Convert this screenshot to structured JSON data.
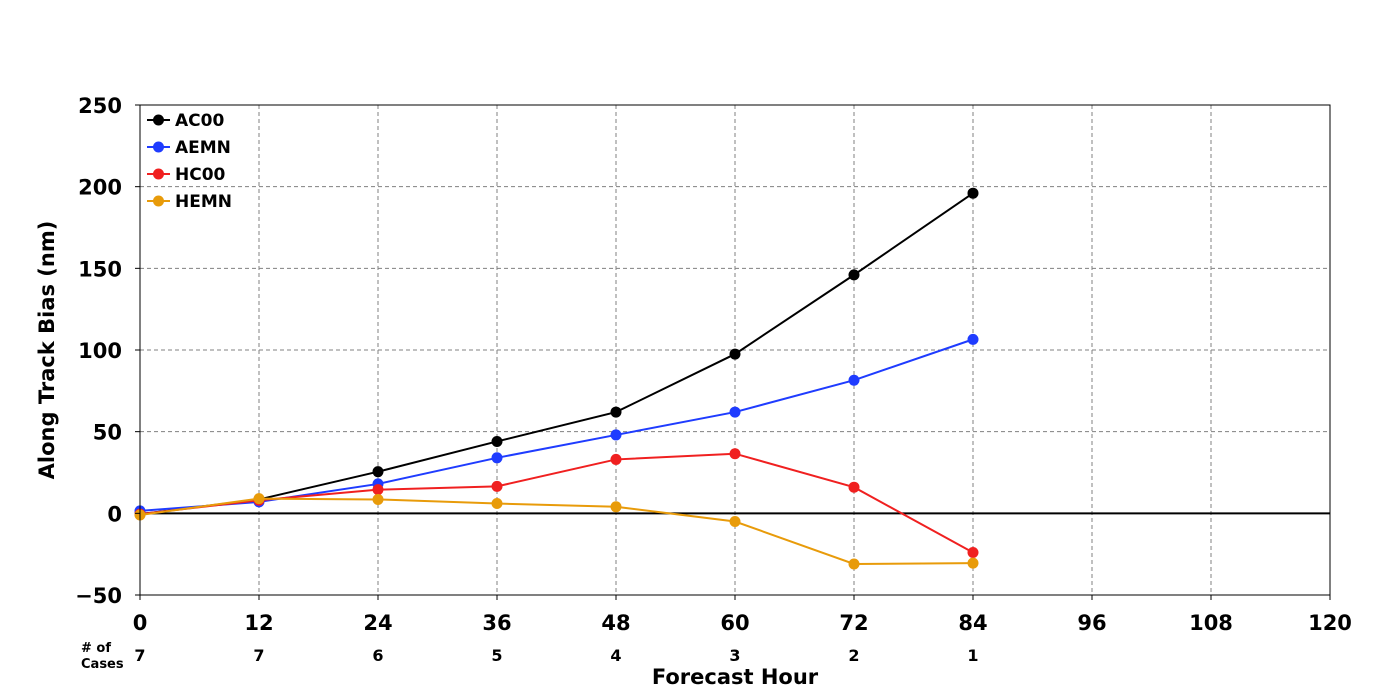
{
  "chart_data": {
    "type": "line",
    "title": "",
    "xlabel": "Forecast Hour",
    "ylabel": "Along Track Bias (nm)",
    "xlim": [
      0,
      120
    ],
    "ylim": [
      -50,
      250
    ],
    "x_ticks": [
      0,
      12,
      24,
      36,
      48,
      60,
      72,
      84,
      96,
      108,
      120
    ],
    "y_ticks": [
      -50,
      0,
      50,
      100,
      150,
      200,
      250
    ],
    "x_tick_labels": [
      "0",
      "12",
      "24",
      "36",
      "48",
      "60",
      "72",
      "84",
      "96",
      "108",
      "120"
    ],
    "y_tick_labels": [
      "−50",
      "0",
      "50",
      "100",
      "150",
      "200",
      "250"
    ],
    "grid": true,
    "legend_position": "top-left",
    "x": [
      0,
      12,
      24,
      36,
      48,
      60,
      72,
      84
    ],
    "series": [
      {
        "name": "AC00",
        "color": "#000000",
        "values": [
          -0.5,
          8.5,
          25.5,
          44,
          62,
          97.5,
          146,
          196
        ]
      },
      {
        "name": "AEMN",
        "color": "#1f3cff",
        "values": [
          1.5,
          7,
          18,
          34,
          48,
          62,
          81.5,
          106.5
        ]
      },
      {
        "name": "HC00",
        "color": "#f02020",
        "values": [
          -0.5,
          8,
          14.5,
          16.5,
          33,
          36.5,
          16,
          -24
        ]
      },
      {
        "name": "HEMN",
        "color": "#e89b0a",
        "values": [
          -1,
          9,
          8.5,
          6,
          4,
          -5,
          -31,
          -30.5
        ]
      }
    ],
    "cases_label": [
      "# of",
      "Cases"
    ],
    "cases": [
      "7",
      "7",
      "6",
      "5",
      "4",
      "3",
      "2",
      "1"
    ]
  }
}
